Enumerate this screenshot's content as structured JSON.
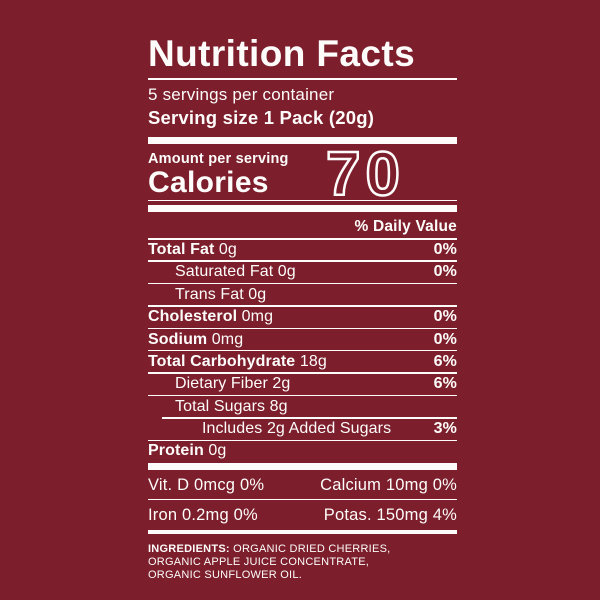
{
  "colors": {
    "background": "#7C1E2C",
    "text": "#FDFCFA"
  },
  "header": {
    "title": "Nutrition Facts",
    "servings_per_container": "5 servings per container",
    "serving_size": "Serving size 1 Pack (20g)"
  },
  "calories": {
    "amount_label": "Amount per serving",
    "word": "Calories",
    "value": "70"
  },
  "daily_value_header": "% Daily Value",
  "nutrient_rows": [
    {
      "b": "Total Fat",
      "r": " 0g",
      "dv": "0%"
    },
    {
      "b": "",
      "r": "Saturated Fat 0g",
      "dv": "0%"
    },
    {
      "b": "",
      "r": "Trans Fat 0g",
      "dv": ""
    },
    {
      "b": "Cholesterol",
      "r": " 0mg",
      "dv": "0%"
    },
    {
      "b": "Sodium",
      "r": " 0mg",
      "dv": "0%"
    },
    {
      "b": "Total Carbohydrate",
      "r": " 18g",
      "dv": "6%"
    },
    {
      "b": "",
      "r": "Dietary Fiber 2g",
      "dv": "6%"
    },
    {
      "b": "",
      "r": "Total Sugars 8g",
      "dv": ""
    },
    {
      "b": "",
      "r": "Includes 2g Added Sugars",
      "dv": "3%"
    },
    {
      "b": "Protein",
      "r": " 0g",
      "dv": ""
    }
  ],
  "minerals": [
    {
      "left": "Vit. D 0mcg 0%",
      "right": "Calcium 10mg 0%"
    },
    {
      "left": "Iron 0.2mg 0%",
      "right": "Potas. 150mg 4%"
    }
  ],
  "ingredients": {
    "label": "INGREDIENTS:",
    "line1": " ORGANIC DRIED CHERRIES,",
    "line2": "ORGANIC APPLE JUICE CONCENTRATE,",
    "line3": "ORGANIC SUNFLOWER OIL."
  }
}
